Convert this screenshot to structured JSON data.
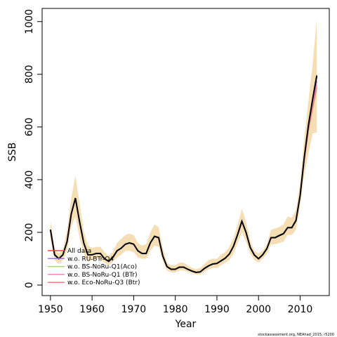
{
  "chart_data": {
    "type": "line",
    "xlabel": "Year",
    "ylabel": "SSB",
    "xlim": [
      1948,
      2017
    ],
    "ylim": [
      -40,
      1050
    ],
    "xticks": [
      1950,
      1960,
      1970,
      1980,
      1990,
      2000,
      2010
    ],
    "yticks": [
      0,
      200,
      400,
      600,
      800,
      1000
    ],
    "grid": false,
    "legend_position": "bottom-left",
    "footnote": "stockassessment.org, NEAhad_2015, r5200",
    "band_color": "#F5DEB3",
    "x": [
      1950,
      1951,
      1952,
      1953,
      1954,
      1955,
      1956,
      1957,
      1958,
      1959,
      1960,
      1961,
      1962,
      1963,
      1964,
      1965,
      1966,
      1967,
      1968,
      1969,
      1970,
      1971,
      1972,
      1973,
      1974,
      1975,
      1976,
      1977,
      1978,
      1979,
      1980,
      1981,
      1982,
      1983,
      1984,
      1985,
      1986,
      1987,
      1988,
      1989,
      1990,
      1991,
      1992,
      1993,
      1994,
      1995,
      1996,
      1997,
      1998,
      1999,
      2000,
      2001,
      2002,
      2003,
      2004,
      2005,
      2006,
      2007,
      2008,
      2009,
      2010,
      2011,
      2012,
      2013,
      2014
    ],
    "band": {
      "lower": [
        175,
        95,
        80,
        95,
        130,
        220,
        260,
        180,
        120,
        90,
        95,
        100,
        100,
        85,
        75,
        90,
        105,
        115,
        130,
        130,
        125,
        105,
        100,
        100,
        130,
        150,
        145,
        90,
        55,
        48,
        48,
        55,
        55,
        50,
        45,
        40,
        40,
        50,
        60,
        65,
        65,
        75,
        85,
        95,
        120,
        160,
        200,
        165,
        120,
        95,
        85,
        100,
        120,
        155,
        155,
        160,
        165,
        190,
        190,
        210,
        300,
        420,
        500,
        575,
        580
      ],
      "upper": [
        245,
        135,
        120,
        135,
        210,
        330,
        415,
        310,
        205,
        150,
        140,
        145,
        145,
        125,
        110,
        125,
        160,
        175,
        190,
        195,
        190,
        160,
        150,
        155,
        200,
        230,
        220,
        140,
        85,
        75,
        75,
        85,
        85,
        75,
        65,
        60,
        65,
        80,
        95,
        100,
        100,
        115,
        125,
        145,
        180,
        230,
        290,
        240,
        170,
        130,
        120,
        130,
        155,
        210,
        215,
        220,
        230,
        260,
        255,
        285,
        390,
        560,
        700,
        835,
        1010
      ]
    },
    "series": [
      {
        "name": "All data",
        "color": "#F04040",
        "values": [
          210,
          115,
          100,
          115,
          165,
          270,
          330,
          240,
          160,
          115,
          115,
          120,
          120,
          100,
          90,
          105,
          130,
          140,
          155,
          160,
          155,
          130,
          120,
          120,
          160,
          185,
          180,
          110,
          70,
          60,
          60,
          68,
          68,
          60,
          53,
          48,
          50,
          63,
          73,
          80,
          82,
          92,
          102,
          118,
          148,
          193,
          242,
          200,
          143,
          114,
          100,
          115,
          138,
          180,
          180,
          188,
          195,
          218,
          218,
          245,
          340,
          484,
          605,
          700,
          790
        ]
      },
      {
        "name": "w.o. RU-BTr-Q4",
        "color": "#9B7FD4",
        "values": [
          208,
          114,
          99,
          114,
          163,
          268,
          327,
          238,
          159,
          114,
          114,
          119,
          119,
          99,
          89,
          104,
          129,
          139,
          154,
          159,
          154,
          129,
          119,
          119,
          159,
          183,
          178,
          109,
          69,
          59,
          59,
          67,
          67,
          59,
          52,
          47,
          49,
          62,
          72,
          79,
          81,
          91,
          101,
          117,
          147,
          191,
          240,
          198,
          142,
          113,
          99,
          114,
          137,
          179,
          179,
          187,
          194,
          217,
          217,
          243,
          337,
          480,
          598,
          690,
          775
        ]
      },
      {
        "name": "w.o. BS-NoRu-Q1(Aco)",
        "color": "#A6D96A",
        "values": [
          211,
          116,
          101,
          116,
          166,
          271,
          331,
          241,
          161,
          116,
          116,
          121,
          121,
          101,
          91,
          106,
          131,
          141,
          156,
          161,
          156,
          131,
          121,
          121,
          161,
          186,
          181,
          111,
          71,
          61,
          61,
          69,
          69,
          61,
          54,
          49,
          51,
          64,
          74,
          81,
          83,
          93,
          103,
          119,
          149,
          194,
          243,
          201,
          144,
          115,
          101,
          116,
          139,
          181,
          182,
          190,
          197,
          220,
          220,
          247,
          343,
          488,
          612,
          710,
          800
        ]
      },
      {
        "name": "w.o. BS-NoRu-Q1 (BTr)",
        "color": "#FF80C0",
        "values": [
          209,
          115,
          100,
          115,
          164,
          269,
          329,
          239,
          160,
          115,
          115,
          120,
          120,
          100,
          90,
          105,
          130,
          140,
          155,
          160,
          155,
          130,
          120,
          120,
          160,
          184,
          179,
          110,
          70,
          60,
          60,
          68,
          68,
          60,
          53,
          48,
          50,
          63,
          73,
          80,
          82,
          92,
          102,
          118,
          148,
          192,
          241,
          199,
          143,
          114,
          100,
          115,
          138,
          180,
          180,
          188,
          195,
          218,
          218,
          244,
          338,
          478,
          592,
          680,
          760
        ]
      },
      {
        "name": "w.o. Eco-NoRu-Q3 (Btr)",
        "color": "#F08080",
        "values": [
          210,
          115,
          100,
          115,
          165,
          270,
          330,
          240,
          160,
          115,
          115,
          120,
          120,
          100,
          90,
          105,
          130,
          140,
          155,
          160,
          155,
          130,
          120,
          120,
          160,
          185,
          180,
          110,
          70,
          60,
          60,
          68,
          68,
          60,
          53,
          48,
          50,
          63,
          73,
          80,
          82,
          92,
          102,
          118,
          148,
          193,
          242,
          200,
          143,
          114,
          100,
          115,
          138,
          180,
          180,
          188,
          195,
          218,
          218,
          245,
          338,
          476,
          588,
          672,
          750
        ]
      }
    ],
    "central": {
      "color": "#000000",
      "values": [
        210,
        115,
        100,
        115,
        165,
        270,
        330,
        240,
        160,
        115,
        115,
        120,
        120,
        100,
        90,
        105,
        130,
        140,
        155,
        160,
        155,
        130,
        120,
        120,
        160,
        185,
        180,
        110,
        70,
        60,
        60,
        68,
        68,
        60,
        53,
        48,
        50,
        63,
        73,
        80,
        82,
        92,
        102,
        118,
        148,
        193,
        242,
        200,
        143,
        114,
        100,
        115,
        138,
        180,
        180,
        188,
        195,
        218,
        218,
        245,
        340,
        485,
        608,
        705,
        795
      ]
    }
  }
}
